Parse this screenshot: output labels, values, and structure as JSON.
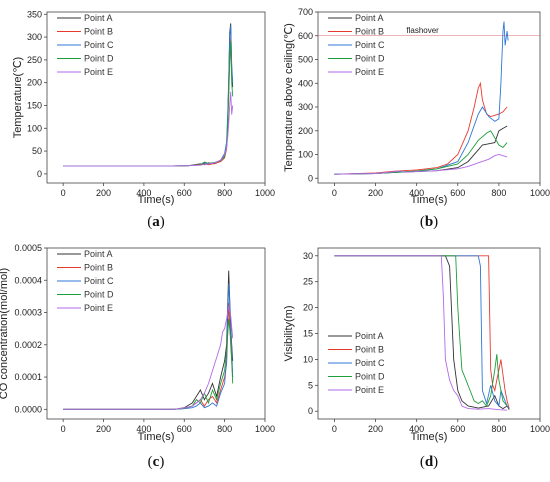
{
  "legend_labels": [
    "Point A",
    "Point B",
    "Point C",
    "Point D",
    "Point E"
  ],
  "series_colors": [
    "#333333",
    "#e8392f",
    "#2f77d4",
    "#1f9e3a",
    "#b36ae8"
  ],
  "chart_data": [
    {
      "type": "line",
      "panel": "(a)",
      "panel_letter": "a",
      "xlabel": "Time(s)",
      "ylabel": "Temperature(℃)",
      "xlim": [
        -80,
        1000
      ],
      "ylim": [
        -20,
        355
      ],
      "xticks": [
        0,
        200,
        400,
        600,
        800,
        1000
      ],
      "yticks": [
        0,
        50,
        100,
        150,
        200,
        250,
        300,
        350
      ],
      "legend_position": "top-left",
      "series": [
        {
          "name": "Point A",
          "x": [
            0,
            500,
            620,
            680,
            700,
            720,
            750,
            780,
            800,
            810,
            815,
            820,
            825,
            830,
            835,
            840
          ],
          "y": [
            17,
            17,
            18,
            22,
            20,
            24,
            22,
            28,
            40,
            60,
            120,
            200,
            310,
            330,
            230,
            190
          ]
        },
        {
          "name": "Point B",
          "x": [
            0,
            500,
            620,
            680,
            700,
            720,
            750,
            780,
            800,
            810,
            815,
            820,
            825,
            830,
            835,
            840
          ],
          "y": [
            17,
            17,
            18,
            21,
            22,
            20,
            23,
            27,
            35,
            55,
            100,
            170,
            240,
            300,
            220,
            200
          ]
        },
        {
          "name": "Point C",
          "x": [
            0,
            500,
            620,
            680,
            700,
            720,
            750,
            780,
            800,
            810,
            815,
            820,
            825,
            830,
            835,
            840
          ],
          "y": [
            17,
            17,
            18,
            20,
            24,
            22,
            24,
            30,
            45,
            70,
            130,
            210,
            300,
            325,
            240,
            200
          ]
        },
        {
          "name": "Point D",
          "x": [
            0,
            500,
            620,
            680,
            700,
            720,
            750,
            780,
            800,
            810,
            815,
            820,
            825,
            830,
            835,
            840
          ],
          "y": [
            17,
            17,
            18,
            20,
            26,
            23,
            25,
            29,
            38,
            60,
            110,
            180,
            260,
            290,
            200,
            170
          ]
        },
        {
          "name": "Point E",
          "x": [
            0,
            500,
            620,
            680,
            700,
            720,
            750,
            780,
            800,
            810,
            815,
            820,
            825,
            830,
            835,
            840
          ],
          "y": [
            17,
            17,
            18,
            19,
            21,
            22,
            24,
            30,
            42,
            58,
            80,
            110,
            150,
            180,
            130,
            150
          ]
        }
      ]
    },
    {
      "type": "line",
      "panel": "(b)",
      "panel_letter": "b",
      "xlabel": "Time(s)",
      "ylabel": "Temperature above ceiling(℃)",
      "xlim": [
        -80,
        1000
      ],
      "ylim": [
        -20,
        700
      ],
      "xticks": [
        0,
        200,
        400,
        600,
        800,
        1000
      ],
      "yticks": [
        0,
        100,
        200,
        300,
        400,
        500,
        600,
        700
      ],
      "legend_position": "top-left",
      "annotation": {
        "text": "flashover",
        "x": 350,
        "y": 600
      },
      "threshold": 600,
      "series": [
        {
          "name": "Point A",
          "x": [
            0,
            200,
            300,
            400,
            500,
            600,
            650,
            700,
            720,
            750,
            780,
            800,
            820,
            840
          ],
          "y": [
            17,
            20,
            25,
            28,
            32,
            45,
            70,
            120,
            140,
            145,
            150,
            200,
            210,
            220
          ]
        },
        {
          "name": "Point B",
          "x": [
            0,
            200,
            300,
            400,
            500,
            550,
            600,
            650,
            680,
            700,
            710,
            720,
            740,
            760,
            800,
            820,
            840
          ],
          "y": [
            17,
            22,
            30,
            35,
            45,
            60,
            100,
            200,
            300,
            380,
            400,
            330,
            270,
            260,
            270,
            280,
            300
          ]
        },
        {
          "name": "Point C",
          "x": [
            0,
            200,
            300,
            400,
            500,
            600,
            650,
            700,
            720,
            750,
            780,
            800,
            810,
            820,
            825,
            830,
            840,
            845
          ],
          "y": [
            17,
            20,
            25,
            30,
            40,
            70,
            150,
            270,
            300,
            260,
            240,
            250,
            400,
            620,
            660,
            560,
            620,
            580
          ]
        },
        {
          "name": "Point D",
          "x": [
            0,
            200,
            300,
            400,
            500,
            600,
            650,
            700,
            740,
            760,
            780,
            800,
            820,
            840
          ],
          "y": [
            17,
            20,
            25,
            30,
            40,
            60,
            100,
            160,
            190,
            200,
            170,
            140,
            130,
            150
          ]
        },
        {
          "name": "Point E",
          "x": [
            0,
            200,
            300,
            320,
            340,
            400,
            500,
            600,
            650,
            700,
            750,
            780,
            800,
            820,
            840
          ],
          "y": [
            17,
            20,
            28,
            32,
            25,
            28,
            32,
            40,
            50,
            65,
            80,
            95,
            100,
            95,
            90
          ]
        }
      ]
    },
    {
      "type": "line",
      "panel": "(c)",
      "panel_letter": "c",
      "xlabel": "Time(s)",
      "ylabel": "CO concentration(mol/mol)",
      "xlim": [
        -80,
        1000
      ],
      "ylim": [
        -3e-05,
        0.0005
      ],
      "xticks": [
        0,
        200,
        400,
        600,
        800,
        1000
      ],
      "yticks": [
        0.0,
        0.0001,
        0.0002,
        0.0003,
        0.0004,
        0.0005
      ],
      "ytick_labels": [
        "0.0000",
        "0.0001",
        "0.0002",
        "0.0003",
        "0.0004",
        "0.0005"
      ],
      "legend_position": "top-left",
      "series": [
        {
          "name": "Point A",
          "x": [
            0,
            550,
            600,
            640,
            660,
            680,
            700,
            720,
            740,
            760,
            780,
            800,
            810,
            820,
            830,
            840
          ],
          "y": [
            0,
            0,
            5e-06,
            2e-05,
            4e-05,
            6e-05,
            3e-05,
            5e-05,
            8e-05,
            4e-05,
            0.0001,
            0.00015,
            0.0002,
            0.00043,
            0.00025,
            0.00015
          ]
        },
        {
          "name": "Point B",
          "x": [
            0,
            550,
            600,
            640,
            660,
            680,
            700,
            720,
            740,
            760,
            780,
            800,
            810,
            820,
            830,
            840
          ],
          "y": [
            0,
            0,
            3e-06,
            1e-05,
            2e-05,
            3e-05,
            1e-05,
            3e-05,
            4e-05,
            2e-05,
            6e-05,
            0.0001,
            0.00014,
            0.00033,
            0.0002,
            0.0001
          ]
        },
        {
          "name": "Point C",
          "x": [
            0,
            550,
            600,
            640,
            660,
            680,
            700,
            720,
            740,
            760,
            780,
            800,
            810,
            820,
            830,
            840
          ],
          "y": [
            0,
            0,
            2e-06,
            5e-06,
            1e-05,
            2e-05,
            5e-06,
            1e-05,
            2e-05,
            1e-05,
            5e-05,
            8e-05,
            0.00015,
            0.00039,
            0.00028,
            0.0001
          ]
        },
        {
          "name": "Point D",
          "x": [
            0,
            550,
            600,
            640,
            660,
            680,
            700,
            720,
            740,
            760,
            780,
            800,
            810,
            820,
            830,
            840
          ],
          "y": [
            0,
            0,
            3e-06,
            1e-05,
            3e-05,
            2e-05,
            5e-05,
            2e-05,
            6e-05,
            3e-05,
            8e-05,
            0.00012,
            0.00018,
            0.00028,
            0.00022,
            8e-05
          ]
        },
        {
          "name": "Point E",
          "x": [
            0,
            550,
            600,
            640,
            660,
            680,
            700,
            720,
            740,
            760,
            780,
            790,
            800,
            810,
            820,
            830,
            840
          ],
          "y": [
            0,
            0,
            4e-06,
            1e-05,
            2e-05,
            3e-05,
            5e-05,
            8e-05,
            0.00012,
            0.00016,
            0.0002,
            0.00024,
            0.00025,
            0.00028,
            0.00032,
            0.00029,
            0.00022
          ]
        }
      ]
    },
    {
      "type": "line",
      "panel": "(d)",
      "panel_letter": "d",
      "xlabel": "Time(s)",
      "ylabel": "Visibility(m)",
      "xlim": [
        -80,
        1000
      ],
      "ylim": [
        -1.5,
        31.5
      ],
      "xticks": [
        0,
        200,
        400,
        600,
        800,
        1000
      ],
      "yticks": [
        0,
        5,
        10,
        15,
        20,
        25,
        30
      ],
      "legend_position": "bottom-left",
      "series": [
        {
          "name": "Point A",
          "x": [
            0,
            520,
            540,
            560,
            580,
            600,
            620,
            650,
            700,
            750,
            780,
            800,
            820,
            840,
            850
          ],
          "y": [
            30,
            30,
            30,
            28,
            10,
            4,
            2,
            1,
            0.6,
            1,
            3,
            1,
            0.5,
            1,
            0.3
          ]
        },
        {
          "name": "Point B",
          "x": [
            0,
            740,
            750,
            760,
            770,
            780,
            790,
            800,
            810,
            820,
            830,
            840,
            850
          ],
          "y": [
            30,
            30,
            30,
            8,
            5,
            4,
            6,
            8,
            10,
            7,
            4,
            2,
            0.5
          ]
        },
        {
          "name": "Point C",
          "x": [
            0,
            700,
            710,
            720,
            740,
            760,
            780,
            800,
            810,
            820,
            840,
            850
          ],
          "y": [
            30,
            30,
            28,
            4,
            1.5,
            5,
            2,
            1,
            4,
            3,
            1,
            0.5
          ]
        },
        {
          "name": "Point D",
          "x": [
            0,
            590,
            600,
            610,
            620,
            640,
            660,
            680,
            700,
            720,
            740,
            760,
            780,
            790,
            800,
            820,
            840
          ],
          "y": [
            30,
            30,
            20,
            14,
            8,
            6,
            4,
            2,
            1.5,
            2,
            1,
            3,
            8,
            11,
            6,
            2,
            1
          ]
        },
        {
          "name": "Point E",
          "x": [
            0,
            520,
            530,
            540,
            560,
            580,
            600,
            620,
            650,
            700,
            750,
            800,
            840
          ],
          "y": [
            30,
            30,
            22,
            10,
            6,
            4,
            3,
            1,
            0.5,
            0.4,
            0.5,
            0.3,
            0.2
          ]
        }
      ]
    }
  ]
}
